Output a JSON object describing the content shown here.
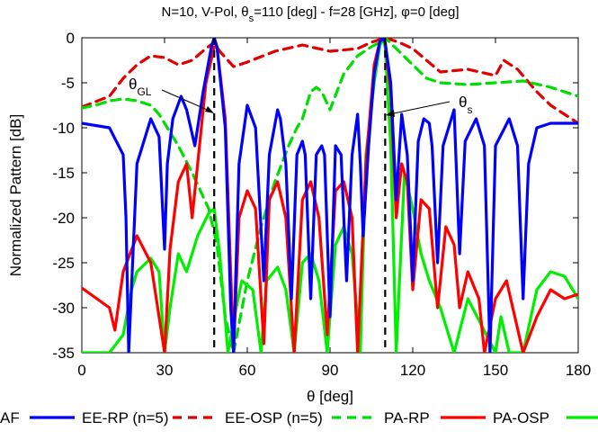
{
  "chart_data": {
    "type": "line",
    "title": "N=10, V-Pol, θs=110 [deg] - f=28 [GHz], φ=0 [deg]",
    "xlabel": "θ [deg]",
    "ylabel": "Normalized Pattern [dB]",
    "xlim": [
      0,
      180
    ],
    "ylim": [
      -35,
      0
    ],
    "x_ticks": [
      0,
      30,
      60,
      90,
      120,
      150,
      180
    ],
    "y_ticks": [
      0,
      -5,
      -10,
      -15,
      -20,
      -25,
      -30,
      -35
    ],
    "grid": false,
    "legend_position": "bottom",
    "series": [
      {
        "name": "AF",
        "color": "#0000ff",
        "dash": "solid",
        "x": [
          0,
          10,
          15,
          16,
          17,
          20,
          25,
          28,
          30,
          31,
          33,
          36,
          38,
          41,
          44,
          47,
          48,
          49,
          52,
          54,
          55,
          57,
          60,
          63,
          66,
          68,
          71,
          72,
          74,
          76,
          78,
          80,
          81,
          83,
          85,
          87,
          88,
          90,
          92,
          94,
          96,
          98,
          100,
          101,
          102,
          104,
          106,
          108,
          109,
          110,
          112,
          114,
          116,
          118,
          120,
          122,
          124,
          126,
          127,
          129,
          131,
          135,
          137,
          139,
          143,
          146,
          148,
          150,
          155,
          158,
          160,
          162,
          165,
          170,
          175,
          180
        ],
        "y": [
          -9.5,
          -10,
          -13,
          -20,
          -35,
          -14,
          -9,
          -11,
          -23.5,
          -14,
          -9,
          -6.5,
          -8,
          -12,
          -6,
          -1,
          0,
          -1,
          -10,
          -30,
          -35,
          -14,
          -7.5,
          -10,
          -27,
          -13,
          -8,
          -9,
          -14,
          -29,
          -13,
          -11.5,
          -13,
          -29,
          -13,
          -12,
          -13,
          -31,
          -12,
          -13,
          -27,
          -13,
          -8.5,
          -14,
          -22,
          -12,
          -4,
          -0.5,
          0,
          -0.5,
          -5,
          -18,
          -8.5,
          -13,
          -27,
          -11.5,
          -9,
          -9.5,
          -12,
          -25,
          -12,
          -8,
          -24,
          -11.5,
          -9,
          -12,
          -35,
          -12,
          -9,
          -12,
          -29,
          -14,
          -10,
          -9.5,
          -9.5,
          -9.5
        ]
      },
      {
        "name": "EE-RP (n=5)",
        "color": "#e00000",
        "dash": "dashed",
        "x": [
          0,
          10,
          15,
          20,
          25,
          30,
          35,
          40,
          45,
          48,
          50,
          55,
          60,
          70,
          80,
          90,
          100,
          105,
          110,
          115,
          120,
          130,
          140,
          150,
          153,
          158,
          165,
          170,
          175,
          180
        ],
        "y": [
          -7.7,
          -6.5,
          -4.5,
          -3,
          -2,
          -2.2,
          -3,
          -2.5,
          -1.2,
          -0.5,
          -1.5,
          -3.2,
          -2.7,
          -1.5,
          -0.8,
          -1.5,
          -1.2,
          -0.5,
          0,
          -0.5,
          -1.2,
          -3.8,
          -3.5,
          -4.2,
          -2.5,
          -3.5,
          -6,
          -7.5,
          -8.5,
          -9.5
        ]
      },
      {
        "name": "EE-OSP (n=5)",
        "color": "#00dd00",
        "dash": "dashed",
        "x": [
          0,
          5,
          10,
          15,
          20,
          25,
          28,
          30,
          35,
          40,
          43,
          46,
          49,
          52,
          55,
          60,
          65,
          70,
          75,
          78,
          80,
          83,
          85,
          87,
          90,
          95,
          100,
          105,
          108,
          110,
          115,
          120,
          125,
          130,
          140,
          150,
          160,
          170,
          175,
          180
        ],
        "y": [
          -7.8,
          -7.5,
          -7,
          -6.8,
          -7,
          -7.5,
          -8.5,
          -9.5,
          -12,
          -15,
          -17,
          -19,
          -23,
          -31,
          -35,
          -27,
          -21,
          -16,
          -12,
          -10,
          -9,
          -6,
          -5.5,
          -6,
          -8,
          -4,
          -2,
          -1,
          -0.5,
          0,
          -1.5,
          -3,
          -4.5,
          -5,
          -5.2,
          -5,
          -4.8,
          -5.5,
          -6,
          -6.5
        ]
      },
      {
        "name": "PA-RP",
        "color": "#ff0000",
        "dash": "solid",
        "x": [
          0,
          10,
          12,
          15,
          20,
          25,
          30,
          32,
          35,
          38,
          40,
          42,
          45,
          48,
          49,
          52,
          55,
          57,
          60,
          63,
          66,
          68,
          71,
          74,
          77,
          80,
          83,
          86,
          89,
          92,
          95,
          98,
          100,
          103,
          106,
          108,
          109,
          110,
          112,
          114,
          116,
          118,
          120,
          123,
          126,
          129,
          132,
          135,
          137,
          140,
          144,
          146,
          150,
          154,
          157,
          160,
          165,
          170,
          175,
          180
        ],
        "y": [
          -27.8,
          -30,
          -32.5,
          -26,
          -22,
          -25,
          -35,
          -23.5,
          -16,
          -14,
          -20,
          -14,
          -5,
          -1,
          -1,
          -9,
          -35,
          -20,
          -17,
          -19,
          -34,
          -18,
          -16,
          -20,
          -35,
          -18,
          -16,
          -20,
          -33,
          -17,
          -16,
          -20,
          -35,
          -14,
          -3,
          -0.5,
          0,
          -0.5,
          -6,
          -20,
          -14,
          -16,
          -28,
          -18,
          -19,
          -30,
          -21,
          -23,
          -30,
          -26,
          -29,
          -35,
          -29,
          -27,
          -31,
          -35,
          -31,
          -28,
          -29,
          -28.5
        ]
      },
      {
        "name": "PA-OSP",
        "color": "#00ee00",
        "dash": "solid",
        "x": [
          0,
          5,
          10,
          15,
          18,
          20,
          25,
          28,
          30,
          32,
          35,
          38,
          42,
          46,
          48,
          50,
          53,
          56,
          58,
          62,
          65,
          67,
          71,
          74,
          77,
          80,
          83,
          86,
          89,
          92,
          95,
          98,
          101,
          103,
          106,
          108,
          109,
          110,
          112,
          114,
          117,
          120,
          123,
          126,
          130,
          135,
          140,
          145,
          150,
          152,
          155,
          160,
          165,
          170,
          175,
          180
        ],
        "y": [
          -35,
          -35,
          -35,
          -33,
          -28,
          -26,
          -24.5,
          -26,
          -35,
          -30,
          -24,
          -26,
          -22,
          -19.5,
          -19,
          -24,
          -35,
          -30,
          -27,
          -28,
          -35,
          -27,
          -25.5,
          -28,
          -35,
          -25,
          -24,
          -27,
          -35,
          -23,
          -21,
          -24,
          -35,
          -13,
          -5,
          -1,
          0,
          -1,
          -12,
          -35,
          -15,
          -19,
          -24,
          -27,
          -30,
          -35,
          -29,
          -32,
          -35,
          -31,
          -35,
          -35,
          -28,
          -26,
          -26.5,
          -29
        ]
      }
    ],
    "vertical_markers": [
      {
        "x": 48,
        "y_top": 0,
        "label": "θGL"
      },
      {
        "x": 110,
        "y_top": 0,
        "label": "θs"
      }
    ]
  },
  "annotations": {
    "theta_gl": {
      "main": "θ",
      "sub": "GL"
    },
    "theta_s": {
      "main": "θ",
      "sub": "s"
    }
  },
  "title_parts": {
    "p1": "N=10, V-Pol, θ",
    "sub": "s",
    "p2": "=110 [deg] - f=28 [GHz], φ=0 [deg]"
  },
  "legend": {
    "items": [
      {
        "label": "AF",
        "color": "#0000ff",
        "dash": "solid"
      },
      {
        "label": "EE-RP (n=5)",
        "color": "#e00000",
        "dash": "dashed"
      },
      {
        "label": "EE-OSP (n=5)",
        "color": "#00dd00",
        "dash": "dashed"
      },
      {
        "label": "PA-RP",
        "color": "#ff0000",
        "dash": "solid"
      },
      {
        "label": "PA-OSP",
        "color": "#00ee00",
        "dash": "solid"
      }
    ]
  }
}
